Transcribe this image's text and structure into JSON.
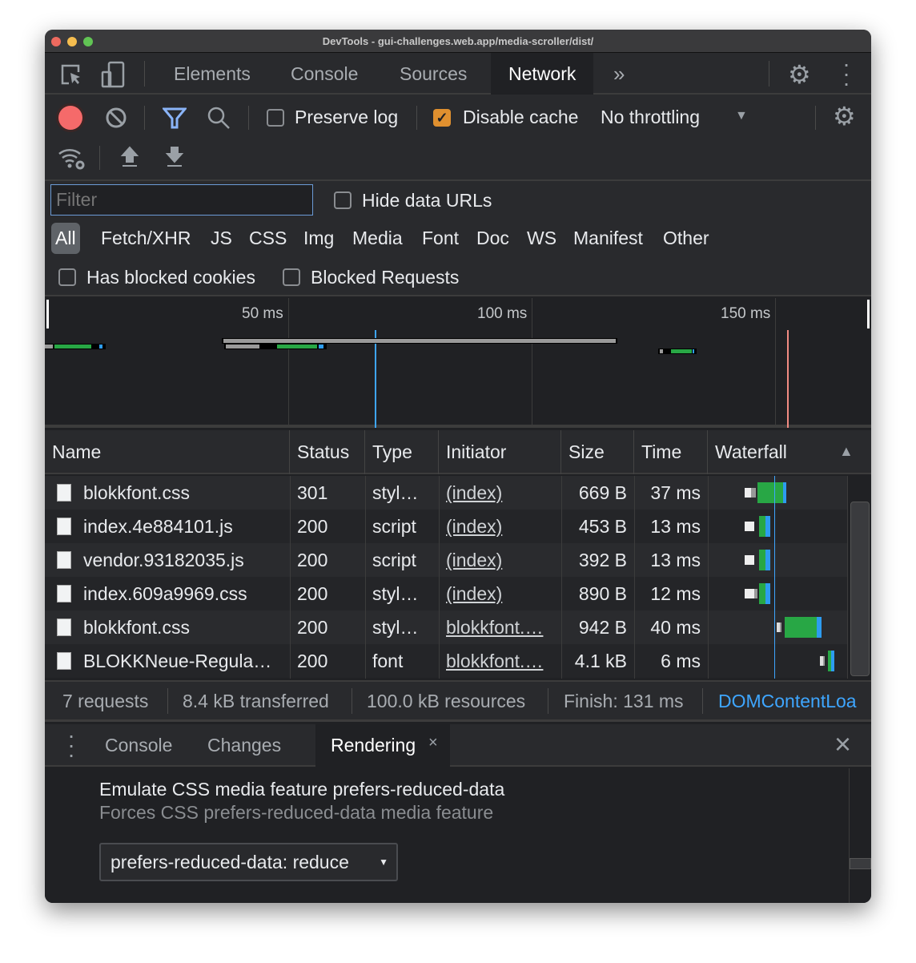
{
  "window": {
    "title": "DevTools - gui-challenges.web.app/media-scroller/dist/"
  },
  "tabs": [
    {
      "label": "Elements"
    },
    {
      "label": "Console"
    },
    {
      "label": "Sources"
    },
    {
      "label": "Network",
      "active": true
    }
  ],
  "toolbar": {
    "preserve_log": "Preserve log",
    "preserve_log_checked": false,
    "disable_cache": "Disable cache",
    "disable_cache_checked": true,
    "throttling": "No throttling"
  },
  "filter": {
    "placeholder": "Filter",
    "hide_data_urls": "Hide data URLs",
    "types": [
      "All",
      "Fetch/XHR",
      "JS",
      "CSS",
      "Img",
      "Media",
      "Font",
      "Doc",
      "WS",
      "Manifest",
      "Other"
    ],
    "active_type": "All",
    "has_blocked_cookies": "Has blocked cookies",
    "blocked_requests": "Blocked Requests"
  },
  "overview": {
    "ticks": [
      "50 ms",
      "100 ms",
      "150 ms"
    ]
  },
  "table": {
    "columns": [
      "Name",
      "Status",
      "Type",
      "Initiator",
      "Size",
      "Time",
      "Waterfall"
    ],
    "sort": "Waterfall ascending",
    "rows": [
      {
        "name": "blokkfont.css",
        "status": "301",
        "type": "styl…",
        "initiator": "(index)",
        "size": "669 B",
        "time": "37 ms"
      },
      {
        "name": "index.4e884101.js",
        "status": "200",
        "type": "script",
        "initiator": "(index)",
        "size": "453 B",
        "time": "13 ms"
      },
      {
        "name": "vendor.93182035.js",
        "status": "200",
        "type": "script",
        "initiator": "(index)",
        "size": "392 B",
        "time": "13 ms"
      },
      {
        "name": "index.609a9969.css",
        "status": "200",
        "type": "styl…",
        "initiator": "(index)",
        "size": "890 B",
        "time": "12 ms"
      },
      {
        "name": "blokkfont.css",
        "status": "200",
        "type": "styl…",
        "initiator": "blokkfont.…",
        "size": "942 B",
        "time": "40 ms"
      },
      {
        "name": "BLOKKNeue-Regula…",
        "status": "200",
        "type": "font",
        "initiator": "blokkfont.…",
        "size": "4.1 kB",
        "time": "6 ms"
      }
    ]
  },
  "summary": {
    "requests": "7 requests",
    "transferred": "8.4 kB transferred",
    "resources": "100.0 kB resources",
    "finish": "Finish: 131 ms",
    "dcl": "DOMContentLoa"
  },
  "drawer": {
    "tabs": [
      "Console",
      "Changes",
      "Rendering"
    ],
    "active": "Rendering",
    "heading": "Emulate CSS media feature prefers-reduced-data",
    "description": "Forces CSS prefers-reduced-data media feature",
    "select_value": "prefers-reduced-data: reduce"
  },
  "colors": {
    "accent": "#1a73e8",
    "dcl": "#3ea6ff",
    "load": "#f28b82",
    "waiting": "#28a745",
    "download": "#2d9cf0",
    "checkbox": "#e0902f"
  }
}
